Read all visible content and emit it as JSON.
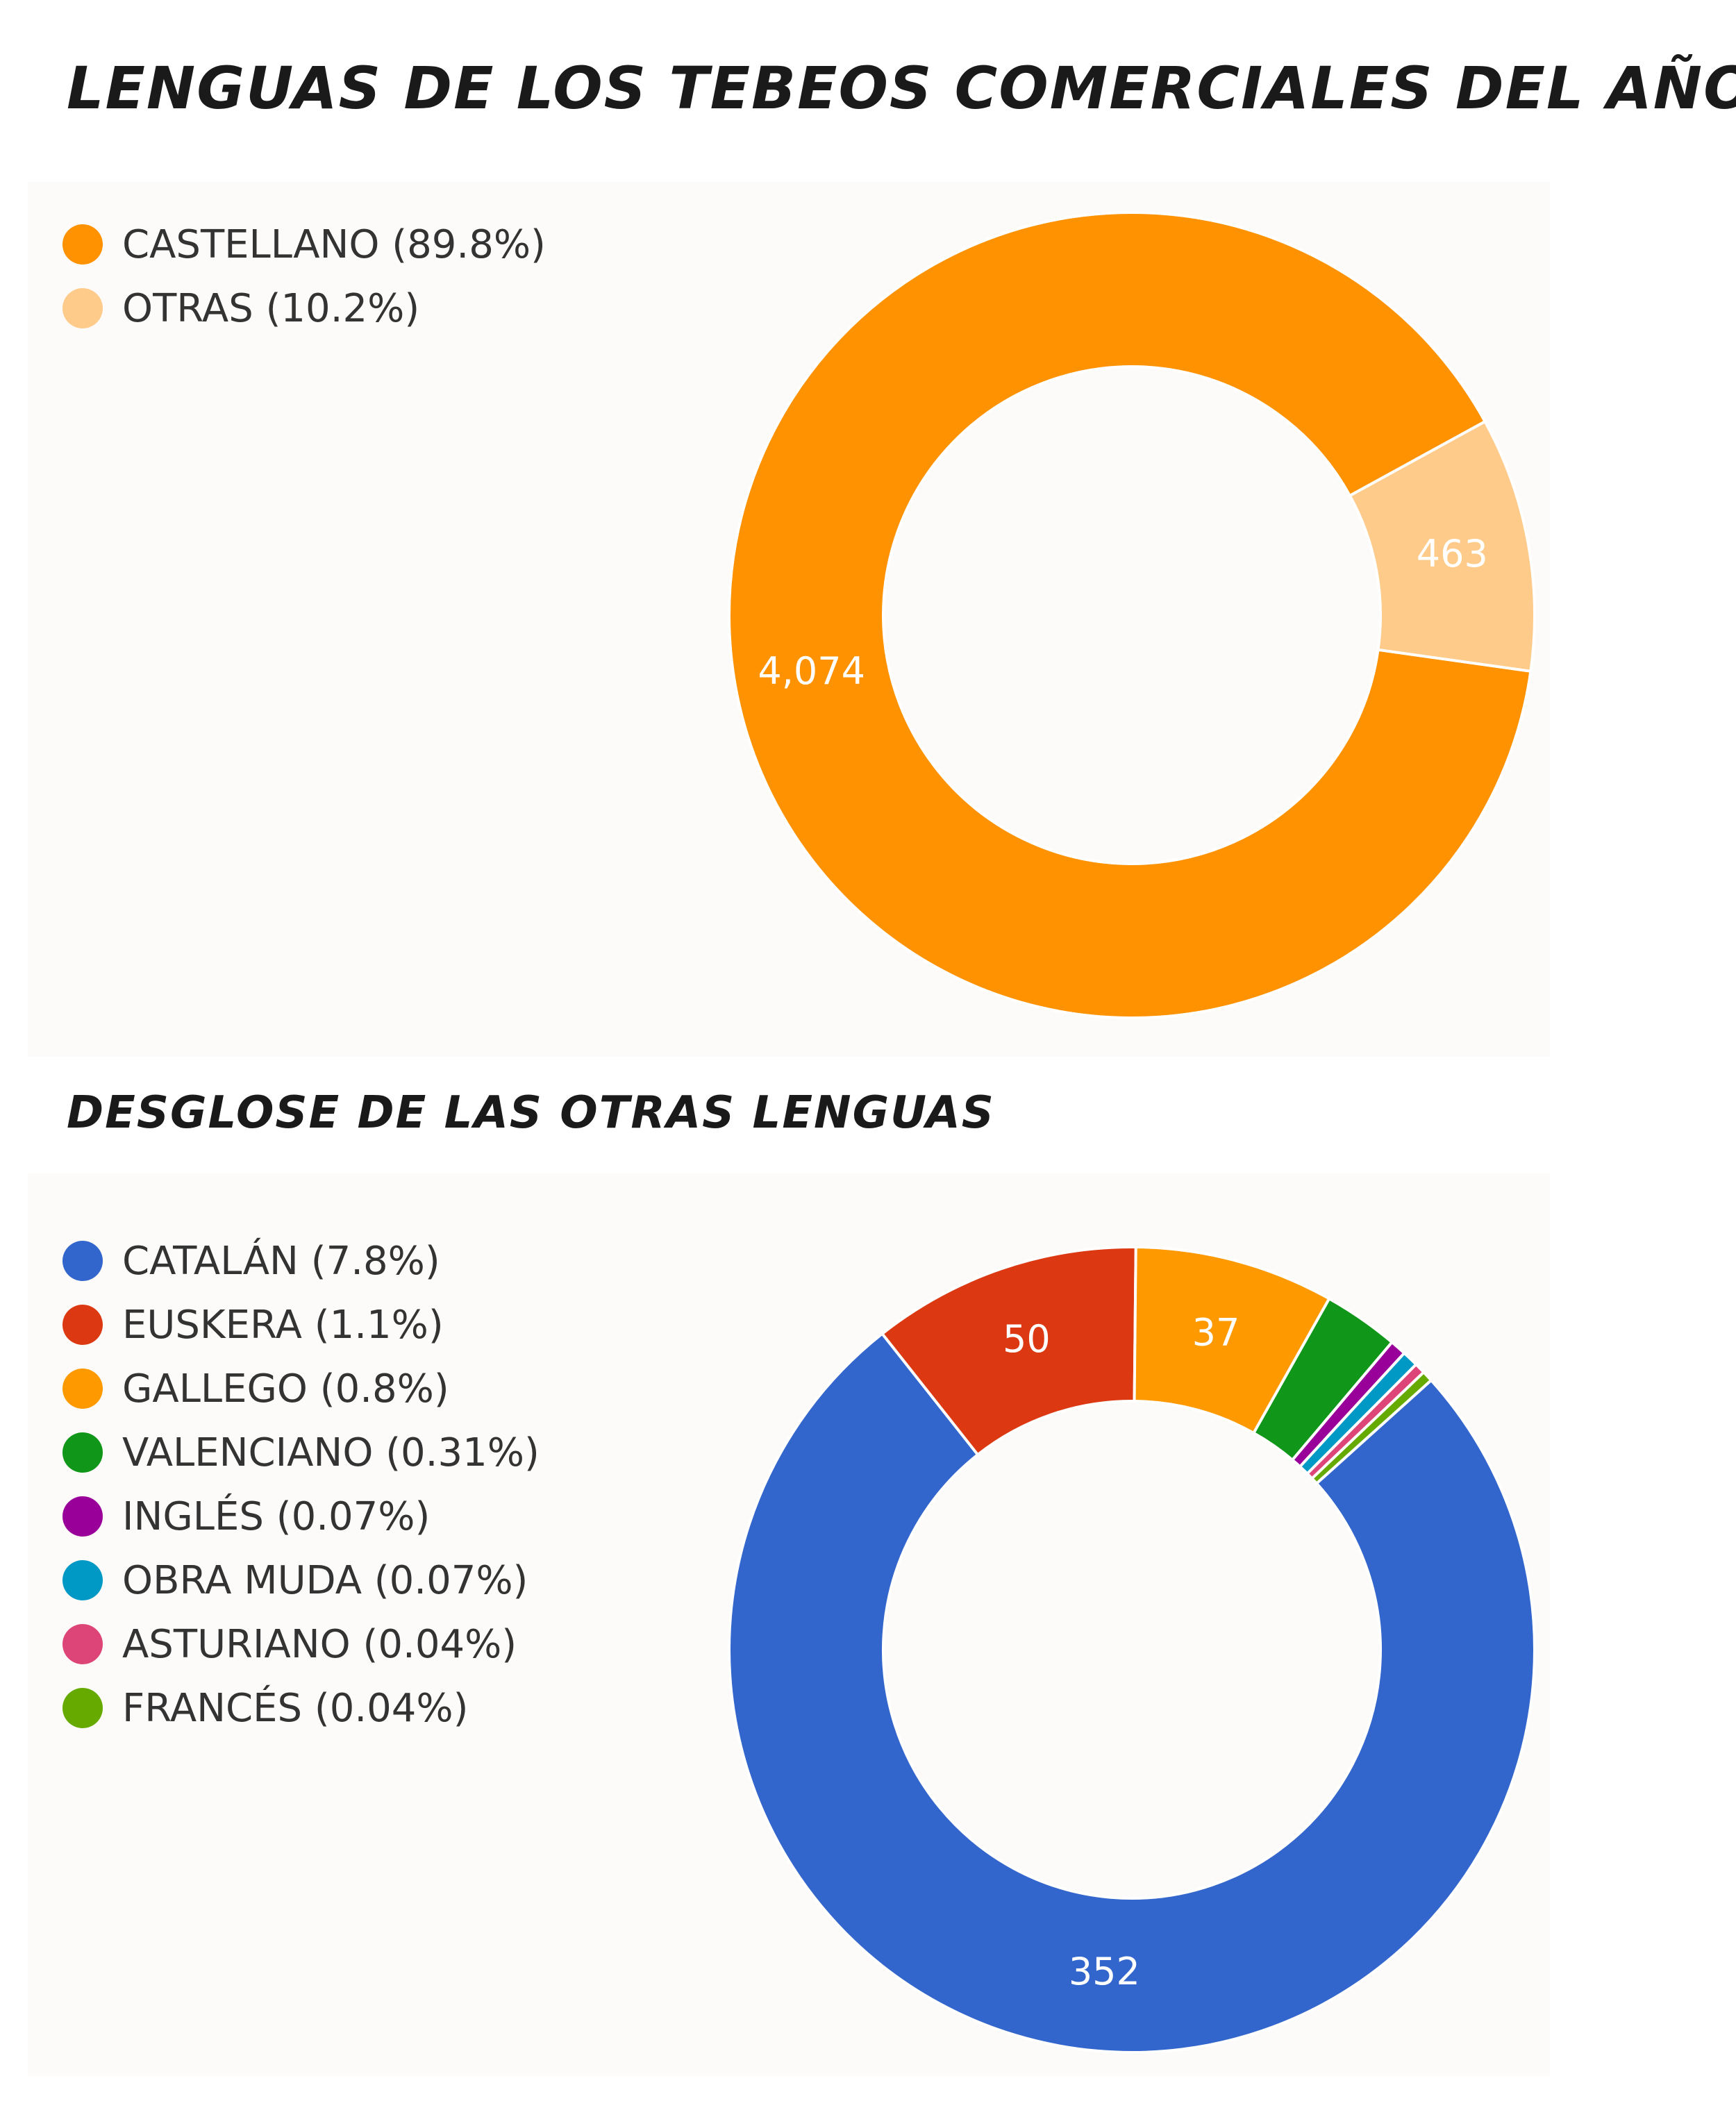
{
  "title": "LENGUAS DE LOS TEBEOS COMERCIALES DEL AÑO",
  "subtitle": "DESGLOSE DE LAS OTRAS LENGUAS",
  "chart_data": [
    {
      "type": "pie",
      "donut": true,
      "legend_position": "top-left",
      "slices": [
        {
          "label": "CASTELLANO",
          "legend": "CASTELLANO (89.8%)",
          "value": 4074,
          "value_label": "4,074",
          "color": "#ff9200"
        },
        {
          "label": "OTRAS",
          "legend": "OTRAS (10.2%)",
          "value": 463,
          "value_label": "463",
          "color": "#ffcb8a"
        }
      ]
    },
    {
      "type": "pie",
      "donut": true,
      "legend_position": "top-left",
      "slices": [
        {
          "label": "CATALÁN",
          "legend": "CATALÁN (7.8%)",
          "value": 352,
          "value_label": "352",
          "color": "#3366cc"
        },
        {
          "label": "EUSKERA",
          "legend": "EUSKERA (1.1%)",
          "value": 50,
          "value_label": "50",
          "color": "#dc3912"
        },
        {
          "label": "GALLEGO",
          "legend": "GALLEGO (0.8%)",
          "value": 37,
          "value_label": "37",
          "color": "#ff9900"
        },
        {
          "label": "VALENCIANO",
          "legend": "VALENCIANO (0.31%)",
          "value": 14,
          "value_label": "",
          "color": "#109618"
        },
        {
          "label": "INGLÉS",
          "legend": "INGLÉS (0.07%)",
          "value": 3,
          "value_label": "",
          "color": "#990099"
        },
        {
          "label": "OBRA MUDA",
          "legend": "OBRA MUDA (0.07%)",
          "value": 3,
          "value_label": "",
          "color": "#0099c6"
        },
        {
          "label": "ASTURIANO",
          "legend": "ASTURIANO (0.04%)",
          "value": 2,
          "value_label": "",
          "color": "#dd4477"
        },
        {
          "label": "FRANCÉS",
          "legend": "FRANCÉS (0.04%)",
          "value": 2,
          "value_label": "",
          "color": "#66aa00"
        }
      ]
    }
  ]
}
